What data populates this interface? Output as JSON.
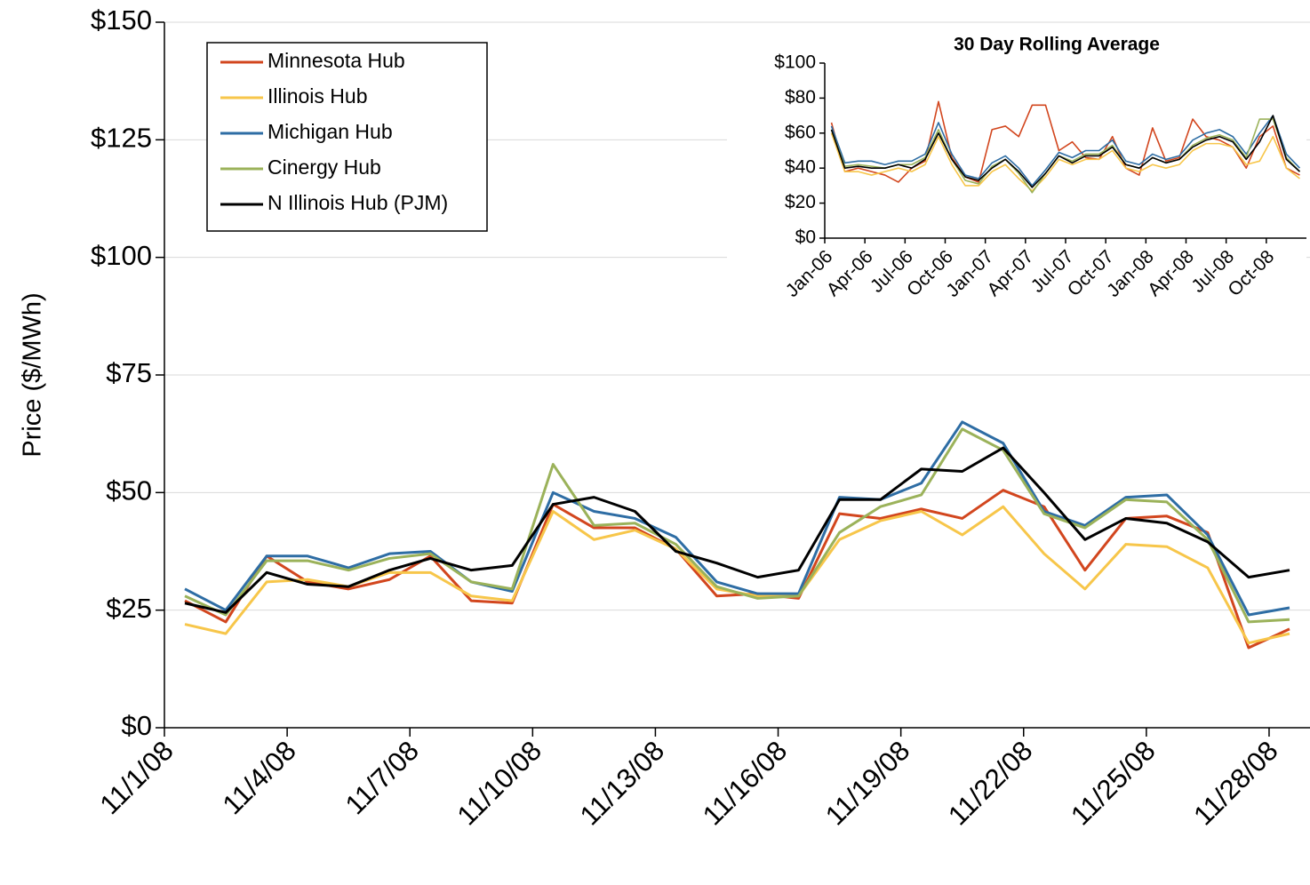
{
  "chart_data": [
    {
      "type": "line",
      "y_label": "Price ($/MWh)",
      "categories": [
        "11/1/08",
        null,
        null,
        "11/4/08",
        null,
        null,
        "11/7/08",
        null,
        null,
        "11/10/08",
        null,
        null,
        "11/13/08",
        null,
        null,
        "11/16/08",
        null,
        null,
        "11/19/08",
        null,
        null,
        "11/22/08",
        null,
        null,
        "11/25/08",
        null,
        null,
        "11/28/08"
      ],
      "series": [
        {
          "name": "Minnesota Hub",
          "color": "#d2461e",
          "values": [
            27,
            22.5,
            36.5,
            31,
            29.5,
            31.5,
            36.5,
            27,
            26.5,
            47.5,
            42.5,
            42.5,
            38,
            28,
            28.5,
            27.5,
            45.5,
            44.5,
            46.5,
            44.5,
            50.5,
            47,
            33.5,
            44.5,
            45,
            41.5,
            17,
            21
          ]
        },
        {
          "name": "Illinois Hub",
          "color": "#f7c64a",
          "values": [
            22,
            20,
            31,
            31.5,
            30,
            33,
            33,
            28,
            27,
            46,
            40,
            42,
            38,
            29.5,
            28,
            28,
            40,
            44,
            46,
            41,
            47,
            37,
            29.5,
            39,
            38.5,
            34,
            18,
            20
          ]
        },
        {
          "name": "Michigan Hub",
          "color": "#2e6da4",
          "values": [
            29.5,
            25,
            36.5,
            36.5,
            34,
            37,
            37.5,
            31,
            29,
            50,
            46,
            44.5,
            40.5,
            31,
            28.5,
            28.5,
            49,
            48.5,
            52,
            65,
            60.5,
            46,
            43,
            49,
            49.5,
            41,
            24,
            25.5
          ]
        },
        {
          "name": "Cinergy Hub",
          "color": "#9bb25a",
          "values": [
            28,
            24,
            35.5,
            35.5,
            33.5,
            36,
            37,
            31,
            29.5,
            56,
            43,
            43.5,
            39,
            30,
            27.5,
            28,
            41.5,
            47,
            49.5,
            63.5,
            59,
            45.5,
            42.5,
            48.5,
            48,
            40,
            22.5,
            23
          ]
        },
        {
          "name": "N Illinois Hub (PJM)",
          "color": "#000000",
          "values": [
            26.5,
            24.5,
            33,
            30.5,
            30,
            33.5,
            36,
            33.5,
            34.5,
            47.5,
            49,
            46,
            37.5,
            35,
            32,
            33.5,
            48.5,
            48.5,
            55,
            54.5,
            59.5,
            50,
            40,
            44.5,
            43.5,
            39.5,
            32,
            33.5
          ]
        }
      ],
      "ylim": [
        0,
        150
      ],
      "yticks": [
        {
          "value": 0,
          "label": "$0"
        },
        {
          "value": 25,
          "label": "$25"
        },
        {
          "value": 50,
          "label": "$50"
        },
        {
          "value": 75,
          "label": "$75"
        },
        {
          "value": 100,
          "label": "$100"
        },
        {
          "value": 125,
          "label": "$125"
        },
        {
          "value": 150,
          "label": "$150"
        }
      ],
      "grid": true,
      "legend": "upper left"
    },
    {
      "type": "line",
      "title": "30 Day Rolling Average",
      "categories": [
        "Jan-06",
        null,
        null,
        "Apr-06",
        null,
        null,
        "Jul-06",
        null,
        null,
        "Oct-06",
        null,
        null,
        "Jan-07",
        null,
        null,
        "Apr-07",
        null,
        null,
        "Jul-07",
        null,
        null,
        "Oct-07",
        null,
        null,
        "Jan-08",
        null,
        null,
        "Apr-08",
        null,
        null,
        "Jul-08",
        null,
        null,
        "Oct-08",
        null,
        null
      ],
      "series": [
        {
          "color": "#d2461e",
          "values": [
            66,
            38,
            40,
            38,
            36,
            32,
            40,
            44,
            78,
            46,
            35,
            32,
            62,
            64,
            58,
            76,
            76,
            50,
            55,
            46,
            45,
            58,
            40,
            36,
            63,
            44,
            46,
            68,
            58,
            56,
            52,
            40,
            58,
            64,
            40,
            36
          ]
        },
        {
          "color": "#f7c64a",
          "values": [
            60,
            38,
            38,
            36,
            38,
            40,
            38,
            42,
            58,
            42,
            30,
            30,
            38,
            42,
            34,
            27,
            35,
            45,
            42,
            45,
            45,
            50,
            40,
            38,
            42,
            40,
            42,
            50,
            54,
            54,
            52,
            42,
            44,
            58,
            40,
            34
          ]
        },
        {
          "color": "#2e6da4",
          "values": [
            64,
            43,
            44,
            44,
            42,
            44,
            44,
            48,
            66,
            48,
            36,
            34,
            43,
            47,
            40,
            30,
            39,
            49,
            46,
            50,
            50,
            56,
            44,
            42,
            48,
            45,
            47,
            56,
            60,
            62,
            58,
            48,
            60,
            70,
            48,
            40
          ]
        },
        {
          "color": "#9bb25a",
          "values": [
            62,
            41,
            42,
            41,
            40,
            42,
            42,
            46,
            62,
            45,
            33,
            31,
            41,
            45,
            37,
            26,
            37,
            47,
            44,
            48,
            48,
            53,
            42,
            40,
            46,
            43,
            45,
            53,
            57,
            59,
            56,
            46,
            68,
            68,
            46,
            38
          ]
        },
        {
          "color": "#000000",
          "values": [
            62,
            40,
            41,
            40,
            40,
            42,
            40,
            45,
            60,
            45,
            35,
            33,
            40,
            45,
            38,
            29,
            37,
            47,
            43,
            47,
            47,
            52,
            42,
            40,
            46,
            43,
            45,
            52,
            56,
            58,
            55,
            45,
            55,
            70,
            45,
            38
          ]
        }
      ],
      "ylim": [
        0,
        100
      ],
      "yticks": [
        {
          "value": 0,
          "label": "$0"
        },
        {
          "value": 20,
          "label": "$20"
        },
        {
          "value": 40,
          "label": "$40"
        },
        {
          "value": 60,
          "label": "$60"
        },
        {
          "value": 80,
          "label": "$80"
        },
        {
          "value": 100,
          "label": "$100"
        }
      ],
      "grid": false
    }
  ]
}
